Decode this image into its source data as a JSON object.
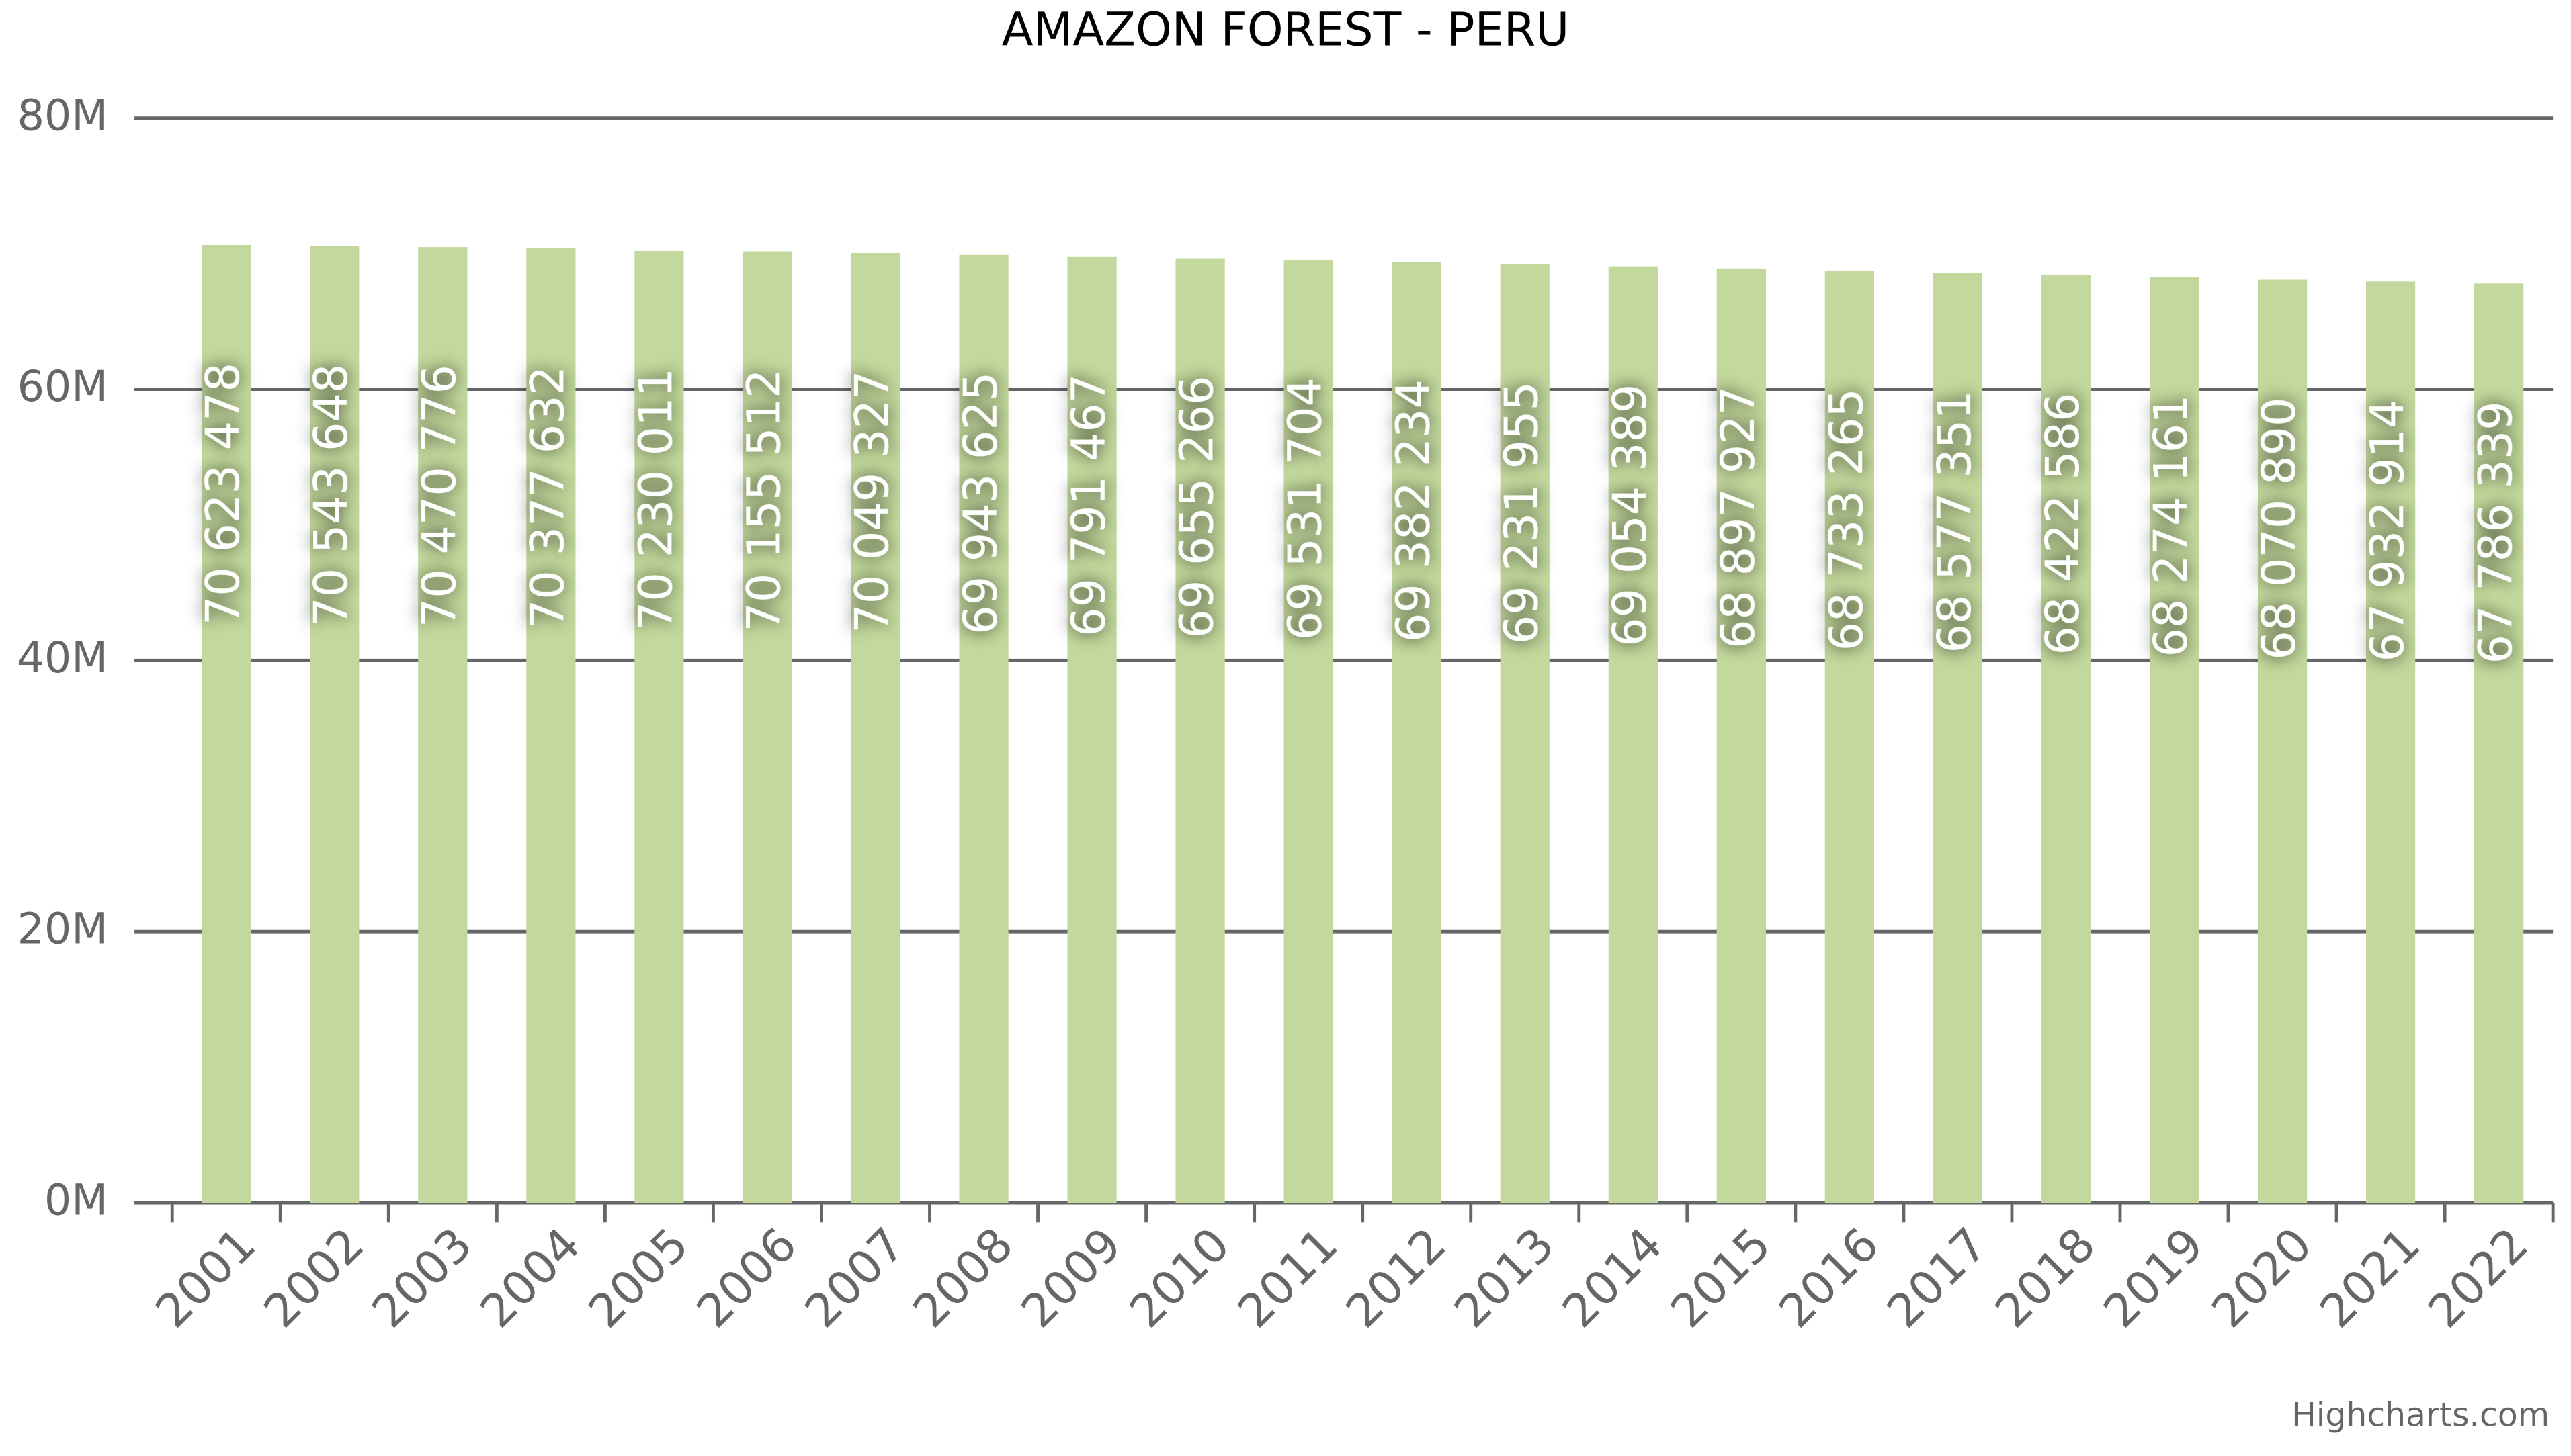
{
  "chart_data": {
    "type": "bar",
    "title": "AMAZON FOREST - PERU",
    "categories": [
      "2001",
      "2002",
      "2003",
      "2004",
      "2005",
      "2006",
      "2007",
      "2008",
      "2009",
      "2010",
      "2011",
      "2012",
      "2013",
      "2014",
      "2015",
      "2016",
      "2017",
      "2018",
      "2019",
      "2020",
      "2021",
      "2022"
    ],
    "values": [
      70623478,
      70543648,
      70470776,
      70377632,
      70230011,
      70155512,
      70049327,
      69943625,
      69791467,
      69655266,
      69531704,
      69382234,
      69231955,
      69054389,
      68897927,
      68733265,
      68577351,
      68422586,
      68274161,
      68070890,
      67932914,
      67786339
    ],
    "value_labels": [
      "70 623 478",
      "70 543 648",
      "70 470 776",
      "70 377 632",
      "70 230 011",
      "70 155 512",
      "70 049 327",
      "69 943 625",
      "69 791 467",
      "69 655 266",
      "69 531 704",
      "69 382 234",
      "69 231 955",
      "69 054 389",
      "68 897 927",
      "68 733 265",
      "68 577 351",
      "68 422 586",
      "68 274 161",
      "68 070 890",
      "67 932 914",
      "67 786 339"
    ],
    "color": "#c2d89c",
    "ylim": [
      0,
      80000000
    ],
    "yticks": [
      {
        "value": 0,
        "label": "0M"
      },
      {
        "value": 20000000,
        "label": "20M"
      },
      {
        "value": 40000000,
        "label": "40M"
      },
      {
        "value": 60000000,
        "label": "60M"
      },
      {
        "value": 80000000,
        "label": "80M"
      }
    ],
    "grid": true,
    "credits": "Highcharts.com"
  }
}
